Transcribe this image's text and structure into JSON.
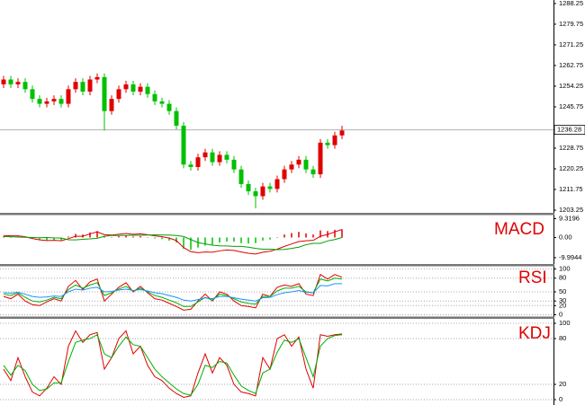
{
  "chart_data": [
    {
      "type": "candlestick",
      "open": [
        1255,
        1257,
        1255,
        1256,
        1253,
        1249,
        1247,
        1248,
        1249,
        1247,
        1253,
        1256,
        1252,
        1257,
        1258,
        1244,
        1249,
        1253,
        1255,
        1252,
        1254,
        1251,
        1248,
        1247,
        1244,
        1238,
        1222,
        1221,
        1225,
        1227,
        1223,
        1226,
        1224,
        1220,
        1214,
        1211,
        1209,
        1213,
        1212,
        1216,
        1220,
        1222,
        1224,
        1220,
        1218,
        1231,
        1230,
        1234
      ],
      "high": [
        1258.5,
        1258.5,
        1257.5,
        1257.5,
        1254.5,
        1250.5,
        1249.5,
        1250.5,
        1250.5,
        1254.5,
        1257.5,
        1257.5,
        1258.5,
        1259.5,
        1259.5,
        1250.5,
        1254.5,
        1256.5,
        1256.5,
        1255.5,
        1255.5,
        1252.5,
        1249.5,
        1248.5,
        1245.5,
        1239.5,
        1223.5,
        1226.5,
        1228.5,
        1228.5,
        1227.5,
        1227.5,
        1225.5,
        1221.5,
        1215.5,
        1212.5,
        1214.5,
        1214.5,
        1217.5,
        1221.5,
        1223.5,
        1225.5,
        1225.5,
        1221.5,
        1232.5,
        1232.5,
        1235.5,
        1238
      ],
      "low": [
        1253.5,
        1253.5,
        1253.5,
        1251.5,
        1247.5,
        1245.5,
        1245.5,
        1246.5,
        1245.5,
        1245.5,
        1251.5,
        1250.5,
        1250.5,
        1255.5,
        1236,
        1242.5,
        1247.5,
        1251.5,
        1250.5,
        1250.5,
        1249.5,
        1246.5,
        1245.5,
        1242.5,
        1236.5,
        1220.5,
        1219.5,
        1219.5,
        1223.5,
        1221.5,
        1221.5,
        1222.5,
        1218.5,
        1212.5,
        1209.5,
        1204,
        1207.5,
        1210.5,
        1210.5,
        1214.5,
        1218.5,
        1220.5,
        1218.5,
        1216.5,
        1216.5,
        1228.5,
        1228.5,
        1232.5
      ],
      "close": [
        1257,
        1255,
        1256,
        1253,
        1249,
        1247,
        1248,
        1249,
        1247,
        1253,
        1256,
        1252,
        1257,
        1258,
        1244,
        1249,
        1253,
        1255,
        1252,
        1254,
        1251,
        1248,
        1247,
        1244,
        1238,
        1222,
        1221,
        1225,
        1227,
        1223,
        1226,
        1224,
        1220,
        1214,
        1211,
        1209,
        1213,
        1212,
        1216,
        1220,
        1222,
        1224,
        1220,
        1218,
        1231,
        1230,
        1234,
        1236
      ],
      "up_color": "#e00000",
      "down_color": "#00c000",
      "last_price": 1236.28,
      "ylim": [
        1202.15,
        1289.7
      ],
      "yticks": [
        1288.25,
        1279.75,
        1271.25,
        1262.75,
        1254.25,
        1245.75,
        1228.75,
        1220.25,
        1211.75,
        1203.25
      ],
      "grid": false
    },
    {
      "type": "macd",
      "title": "MACD",
      "histogram": {
        "up_color": "#e00000",
        "down_color": "#00c000",
        "values": [
          0.5,
          0.4,
          0.6,
          0.3,
          -0.5,
          -1.2,
          -1.5,
          -1.2,
          -1.3,
          0.5,
          1.8,
          1.5,
          2.5,
          3.2,
          0.8,
          0.2,
          0.6,
          1.0,
          0.5,
          0.7,
          0.2,
          -0.5,
          -0.8,
          -1.5,
          -2.5,
          -5.5,
          -6,
          -5,
          -4,
          -3.5,
          -2.5,
          -2,
          -2,
          -2.8,
          -3,
          -2.8,
          -1.5,
          -1,
          0.2,
          1.5,
          2.2,
          2.8,
          2,
          1.5,
          3.5,
          3.2,
          3.8,
          4.0
        ]
      },
      "series": [
        {
          "color": "#e00000",
          "values": [
            1,
            0.8,
            0.8,
            0.4,
            -0.5,
            -1.2,
            -1.5,
            -1.4,
            -1.6,
            -0.6,
            0.6,
            0.6,
            1.8,
            2.8,
            1.4,
            1.2,
            1.6,
            2,
            1.6,
            1.8,
            1.4,
            0.8,
            0.4,
            -0.3,
            -1.5,
            -5,
            -7,
            -7.5,
            -7.2,
            -7.3,
            -6.6,
            -6.2,
            -6.4,
            -7.2,
            -7.8,
            -8.2,
            -7.3,
            -6.8,
            -5.8,
            -4.4,
            -3.2,
            -2,
            -1.6,
            -1.4,
            0.6,
            1.5,
            2.8,
            4
          ]
        },
        {
          "color": "#00a000",
          "values": [
            0.5,
            0.4,
            0.2,
            0.1,
            0,
            -0.1,
            0,
            -0.2,
            -0.3,
            -1.1,
            -1.2,
            -0.9,
            -0.7,
            -0.4,
            0.6,
            1,
            1,
            1,
            1.1,
            1.1,
            1.2,
            1.3,
            1.2,
            1.2,
            1,
            0.5,
            -1,
            -2.5,
            -3.2,
            -3.8,
            -4.1,
            -4.2,
            -4.4,
            -4.4,
            -4.8,
            -5.4,
            -5.8,
            -5.8,
            -6,
            -5.9,
            -5.4,
            -4.8,
            -3.6,
            -2.9,
            -2.9,
            -1.7,
            -1,
            0
          ]
        }
      ],
      "ylim": [
        -13.14,
        11.12
      ],
      "yticks": [
        9.3196,
        {
          "value": 0,
          "label": "0.00"
        },
        -9.9944
      ],
      "grid": false
    },
    {
      "type": "line",
      "title": "RSI",
      "series": [
        {
          "color": "#e00000",
          "values": [
            40,
            35,
            45,
            30,
            22,
            20,
            28,
            35,
            30,
            62,
            75,
            55,
            72,
            78,
            30,
            45,
            60,
            70,
            50,
            62,
            48,
            35,
            32,
            25,
            18,
            10,
            12,
            30,
            45,
            30,
            50,
            45,
            30,
            20,
            18,
            15,
            45,
            40,
            60,
            65,
            62,
            68,
            45,
            42,
            88,
            78,
            88,
            82
          ]
        },
        {
          "color": "#00b000",
          "values": [
            45,
            42,
            48,
            38,
            30,
            28,
            32,
            38,
            35,
            55,
            65,
            58,
            65,
            70,
            42,
            48,
            56,
            62,
            52,
            58,
            50,
            42,
            38,
            32,
            26,
            18,
            18,
            28,
            38,
            32,
            45,
            42,
            35,
            28,
            25,
            23,
            40,
            40,
            52,
            58,
            58,
            62,
            50,
            48,
            78,
            74,
            80,
            78
          ]
        },
        {
          "color": "#1e90ff",
          "values": [
            48,
            47,
            49,
            45,
            40,
            38,
            39,
            41,
            40,
            50,
            56,
            54,
            58,
            60,
            50,
            51,
            54,
            56,
            53,
            55,
            52,
            48,
            46,
            42,
            38,
            32,
            30,
            33,
            37,
            35,
            40,
            40,
            37,
            34,
            32,
            30,
            37,
            38,
            44,
            48,
            50,
            53,
            49,
            48,
            64,
            63,
            68,
            68
          ]
        }
      ],
      "ylim": [
        -4,
        106
      ],
      "yticks": [
        100,
        80,
        50,
        30,
        20,
        0
      ],
      "grid": true
    },
    {
      "type": "line",
      "title": "KDJ",
      "series": [
        {
          "color": "#e00000",
          "values": [
            40,
            25,
            55,
            30,
            10,
            5,
            15,
            30,
            20,
            70,
            90,
            75,
            85,
            88,
            40,
            55,
            80,
            90,
            60,
            70,
            45,
            30,
            25,
            15,
            8,
            3,
            5,
            35,
            60,
            35,
            55,
            45,
            20,
            10,
            8,
            5,
            55,
            40,
            80,
            85,
            70,
            82,
            40,
            15,
            85,
            83,
            85,
            86
          ]
        },
        {
          "color": "#00b000",
          "values": [
            45,
            32,
            45,
            38,
            20,
            12,
            14,
            22,
            22,
            50,
            75,
            78,
            80,
            85,
            60,
            55,
            70,
            82,
            72,
            70,
            55,
            40,
            30,
            22,
            14,
            8,
            6,
            20,
            45,
            42,
            50,
            48,
            32,
            18,
            12,
            8,
            35,
            40,
            62,
            78,
            75,
            80,
            55,
            30,
            70,
            80,
            84,
            85
          ]
        }
      ],
      "ylim": [
        -7,
        105.9
      ],
      "yticks": [
        100,
        80,
        20,
        0
      ],
      "grid": true
    }
  ]
}
